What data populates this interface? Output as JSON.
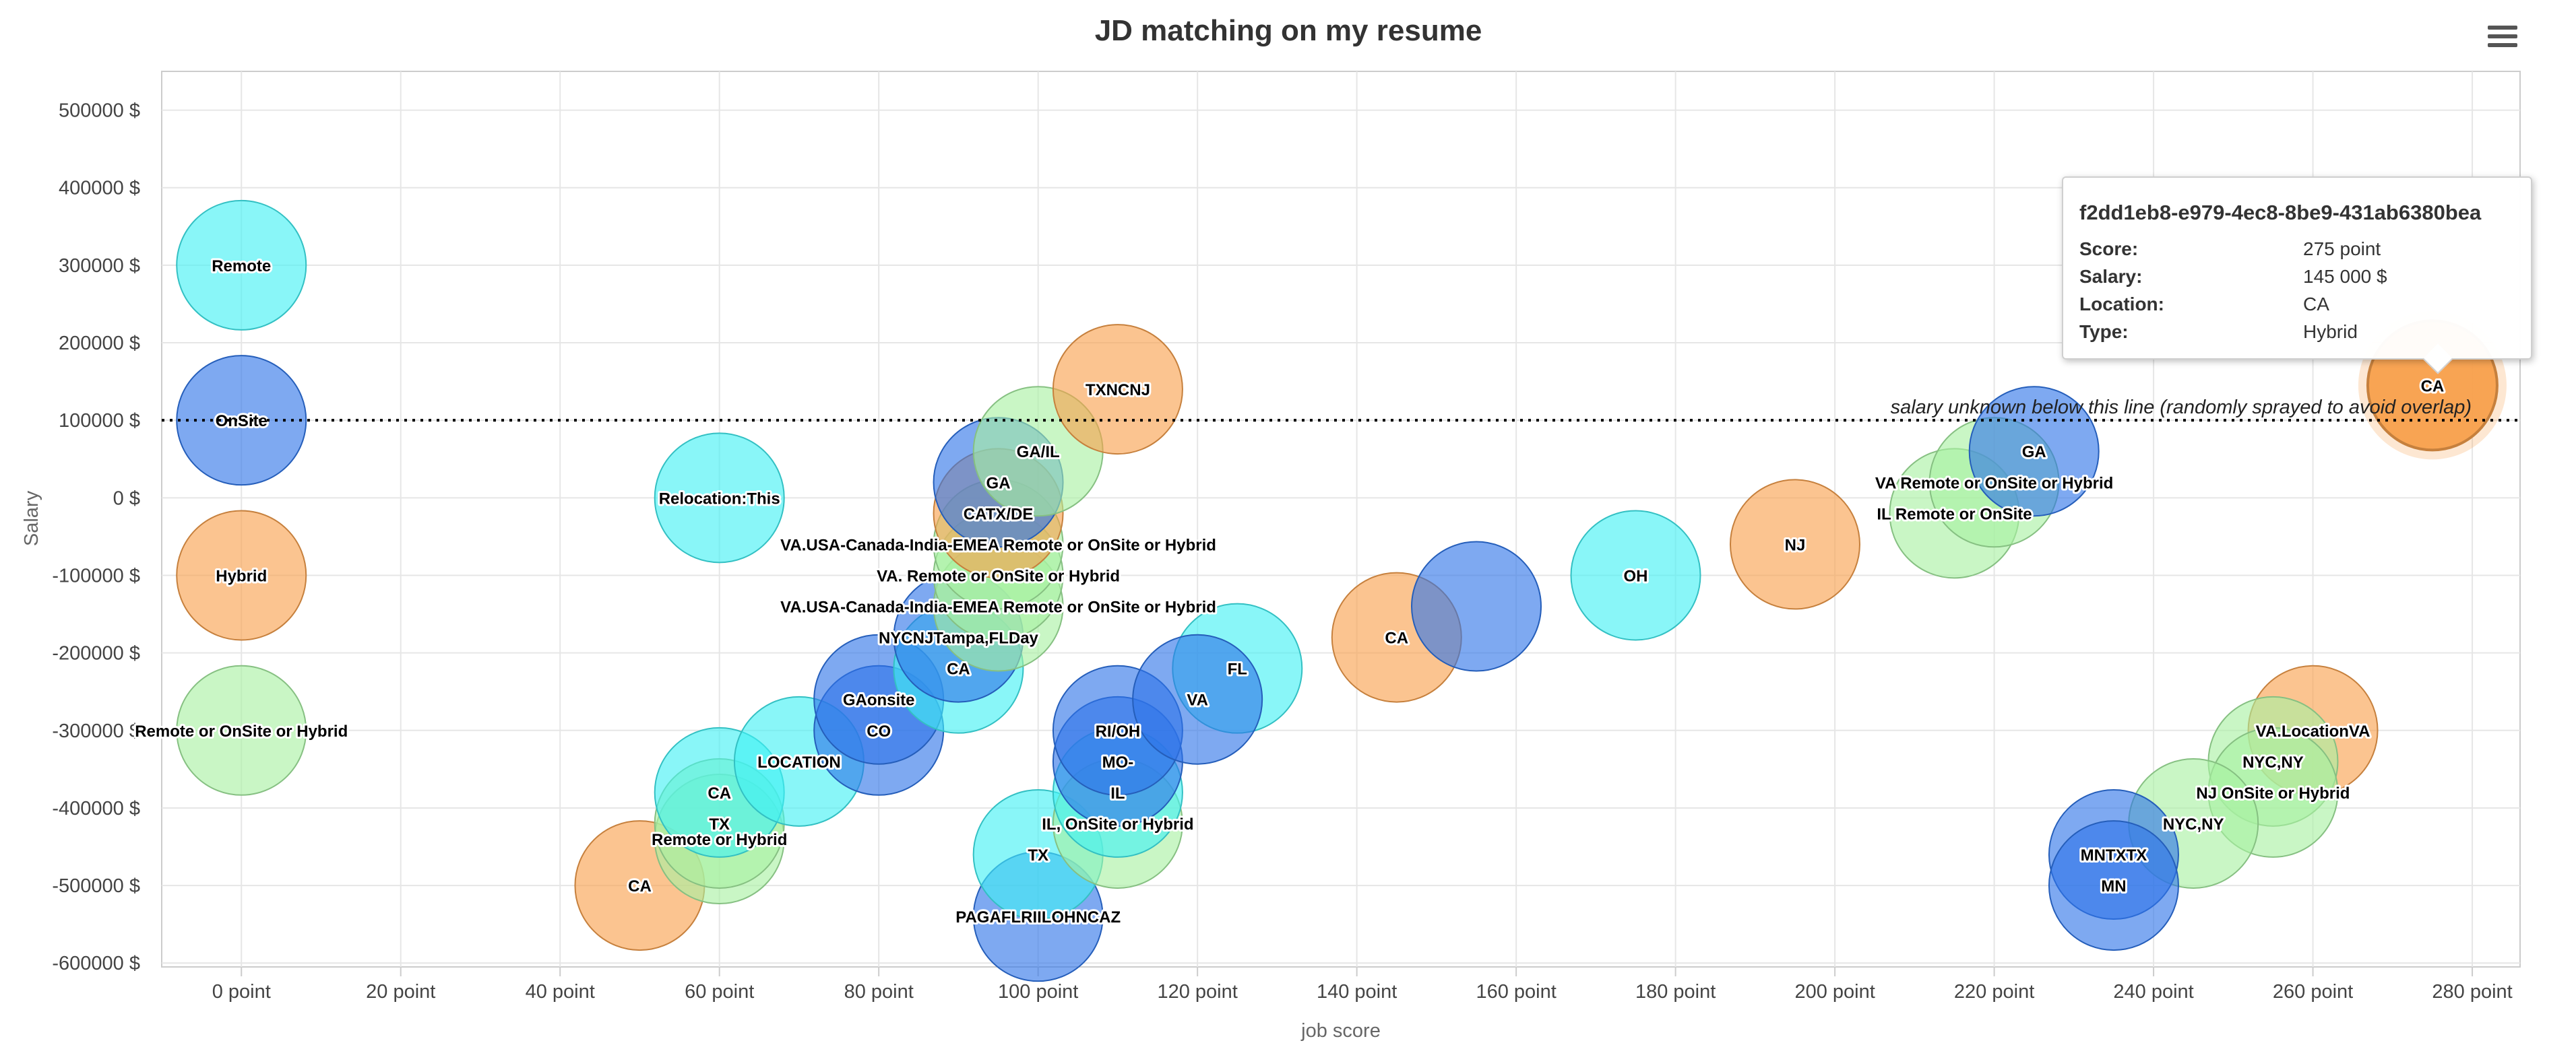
{
  "chart_data": {
    "type": "bubble",
    "title": "JD matching on my resume",
    "xlabel": "job score",
    "ylabel": "Salary",
    "xlim": [
      -10,
      286
    ],
    "ylim": [
      -605000,
      550000
    ],
    "x_ticks": [
      0,
      20,
      40,
      60,
      80,
      100,
      120,
      140,
      160,
      180,
      200,
      220,
      240,
      260,
      280
    ],
    "y_ticks": [
      500000,
      400000,
      300000,
      200000,
      100000,
      0,
      -100000,
      -200000,
      -300000,
      -400000,
      -500000,
      -600000
    ],
    "x_tick_suffix": " point",
    "y_tick_suffix": " $",
    "grid": true,
    "threshold_line": {
      "y": 100000,
      "label": "salary unknown below this line (randomly sprayed to avoid overlap)"
    },
    "colors": {
      "Remote": "#40f0f4",
      "OnSite": "#2e75e8",
      "Hybrid": "#f8a04c",
      "Remote or OnSite or Hybrid": "#a8f0a2"
    },
    "points": [
      {
        "x": 0,
        "y": 300000,
        "label": "Remote",
        "type": "Remote"
      },
      {
        "x": 0,
        "y": 100000,
        "label": "OnSite",
        "type": "OnSite"
      },
      {
        "x": 0,
        "y": -100000,
        "label": "Hybrid",
        "type": "Hybrid"
      },
      {
        "x": 0,
        "y": -300000,
        "label": "Remote or OnSite or Hybrid",
        "type": "Remote or OnSite or Hybrid"
      },
      {
        "x": 60,
        "y": 0,
        "label": "Relocation:This",
        "type": "Remote"
      },
      {
        "x": 50,
        "y": -500000,
        "label": "CA",
        "type": "Hybrid"
      },
      {
        "x": 60,
        "y": -440000,
        "label": "Remote or Hybrid",
        "type": "Remote or OnSite or Hybrid"
      },
      {
        "x": 60,
        "y": -420000,
        "label": "TX",
        "type": "Remote or OnSite or Hybrid"
      },
      {
        "x": 60,
        "y": -380000,
        "label": "CA",
        "type": "Remote"
      },
      {
        "x": 70,
        "y": -340000,
        "label": "LOCATION",
        "type": "Remote"
      },
      {
        "x": 80,
        "y": -300000,
        "label": "CO",
        "type": "OnSite"
      },
      {
        "x": 80,
        "y": -260000,
        "label": "GAonsite",
        "type": "OnSite"
      },
      {
        "x": 90,
        "y": -220000,
        "label": "CA",
        "type": "Remote"
      },
      {
        "x": 90,
        "y": -180000,
        "label": "NYCNJTampa,FLDay",
        "type": "OnSite"
      },
      {
        "x": 95,
        "y": -140000,
        "label": "VA.USA-Canada-India-EMEA Remote or OnSite or Hybrid",
        "type": "Remote or OnSite or Hybrid"
      },
      {
        "x": 95,
        "y": -100000,
        "label": "VA. Remote or OnSite or Hybrid",
        "type": "Remote or OnSite or Hybrid"
      },
      {
        "x": 95,
        "y": -60000,
        "label": "VA.USA-Canada-India-EMEA Remote or OnSite or Hybrid",
        "type": "Remote or OnSite or Hybrid"
      },
      {
        "x": 95,
        "y": -20000,
        "label": "CATX/DE",
        "type": "Hybrid"
      },
      {
        "x": 95,
        "y": 20000,
        "label": "GA",
        "type": "OnSite"
      },
      {
        "x": 100,
        "y": 60000,
        "label": "GA/IL",
        "type": "Remote or OnSite or Hybrid"
      },
      {
        "x": 110,
        "y": 140000,
        "label": "TXNCNJ",
        "type": "Hybrid"
      },
      {
        "x": 100,
        "y": -540000,
        "label": "PAGAFLRIILOHNCAZ",
        "type": "OnSite"
      },
      {
        "x": 100,
        "y": -460000,
        "label": "TX",
        "type": "Remote"
      },
      {
        "x": 110,
        "y": -420000,
        "label": "IL, OnSite or Hybrid",
        "type": "Remote or OnSite or Hybrid"
      },
      {
        "x": 110,
        "y": -380000,
        "label": "IL",
        "type": "Remote"
      },
      {
        "x": 110,
        "y": -340000,
        "label": "MO-",
        "type": "OnSite"
      },
      {
        "x": 110,
        "y": -300000,
        "label": "RI/OH",
        "type": "OnSite"
      },
      {
        "x": 125,
        "y": -220000,
        "label": "FL",
        "type": "Remote"
      },
      {
        "x": 120,
        "y": -260000,
        "label": "VA",
        "type": "OnSite"
      },
      {
        "x": 145,
        "y": -180000,
        "label": "CA",
        "type": "Hybrid"
      },
      {
        "x": 155,
        "y": -140000,
        "label": "",
        "type": "OnSite"
      },
      {
        "x": 175,
        "y": -100000,
        "label": "OH",
        "type": "Remote"
      },
      {
        "x": 195,
        "y": -60000,
        "label": "NJ",
        "type": "Hybrid"
      },
      {
        "x": 215,
        "y": -20000,
        "label": "IL Remote or OnSite",
        "type": "Remote or OnSite or Hybrid"
      },
      {
        "x": 220,
        "y": 20000,
        "label": "VA Remote or OnSite or Hybrid",
        "type": "Remote or OnSite or Hybrid"
      },
      {
        "x": 225,
        "y": 60000,
        "label": "GA",
        "type": "OnSite"
      },
      {
        "x": 275,
        "y": 145000,
        "label": "CA",
        "type": "Hybrid"
      },
      {
        "x": 260,
        "y": -300000,
        "label": "VA.LocationVA",
        "type": "Hybrid"
      },
      {
        "x": 255,
        "y": -340000,
        "label": "NYC,NY",
        "type": "Remote or OnSite or Hybrid"
      },
      {
        "x": 255,
        "y": -380000,
        "label": "NJ OnSite or Hybrid",
        "type": "Remote or OnSite or Hybrid"
      },
      {
        "x": 245,
        "y": -420000,
        "label": "NYC,NY",
        "type": "Remote or OnSite or Hybrid"
      },
      {
        "x": 235,
        "y": -460000,
        "label": "MNTXTX",
        "type": "OnSite"
      },
      {
        "x": 235,
        "y": -500000,
        "label": "MN",
        "type": "OnSite"
      }
    ],
    "highlighted_index": 36
  },
  "tooltip": {
    "title": "f2dd1eb8-e979-4ec8-8be9-431ab6380bea",
    "rows": [
      {
        "key": "Score:",
        "value": "275 point"
      },
      {
        "key": "Salary:",
        "value": "145 000 $"
      },
      {
        "key": "Location:",
        "value": "CA"
      },
      {
        "key": "Type:",
        "value": "Hybrid"
      }
    ]
  },
  "menu": {
    "icon": "hamburger-menu-icon"
  }
}
